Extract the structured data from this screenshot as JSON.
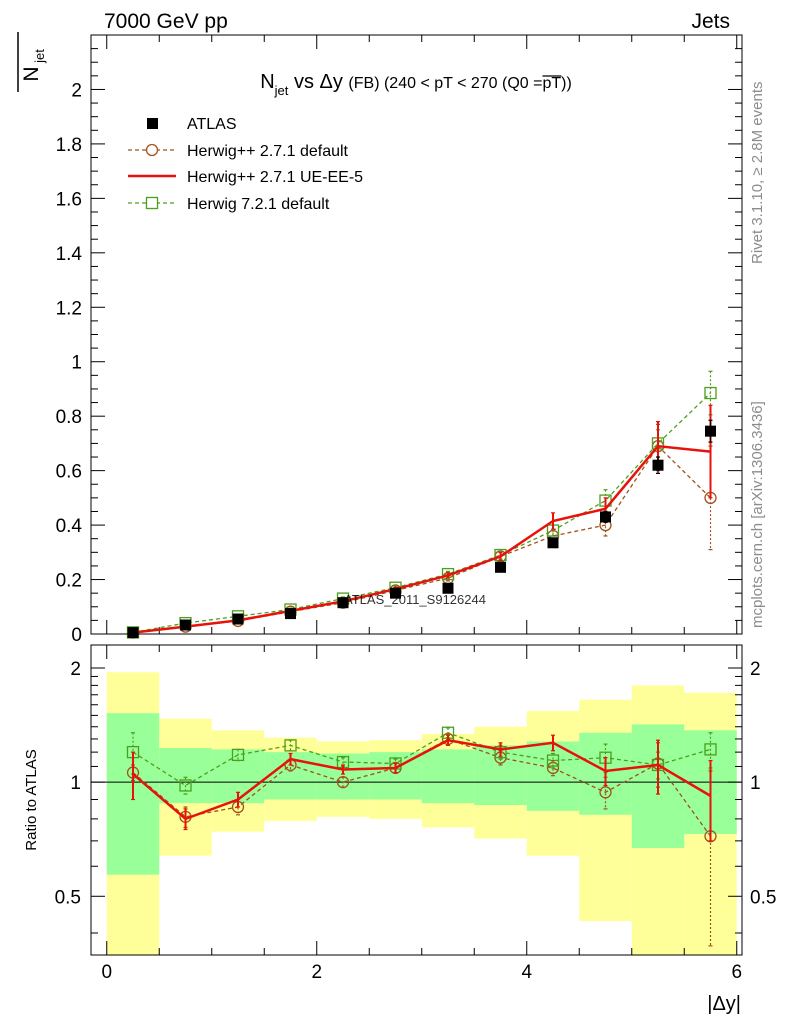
{
  "header": {
    "left": "7000 GeV pp",
    "right": "Jets",
    "side_top": "Rivet 3.1.10, ≥ 2.8M events",
    "side_bottom": "mcplots.cern.ch [arXiv:1306.3436]",
    "watermark": "ATLAS_2011_S9126244"
  },
  "chart_data": [
    {
      "type": "line",
      "panel": "main",
      "title_parts": {
        "n": "N",
        "sub": "jet",
        "vs": " vs Δy ",
        "fb": "(FB)",
        "cut": " (240 < pT < 270 (Q0 =",
        "pt": "pT",
        "close": "))"
      },
      "ylabel": {
        "n": "N",
        "sub": "jet"
      },
      "xlim": [
        -0.15,
        6.05
      ],
      "ylim": [
        0,
        2.2
      ],
      "yticks": [
        0,
        0.2,
        0.4,
        0.6,
        0.8,
        1,
        1.2,
        1.4,
        1.6,
        1.8,
        2
      ],
      "ytick_labels": [
        "0",
        "0.2",
        "0.4",
        "0.6",
        "0.8",
        "1",
        "1.2",
        "1.4",
        "1.6",
        "1.8",
        "2"
      ],
      "x": [
        0.25,
        0.75,
        1.25,
        1.75,
        2.25,
        2.75,
        3.25,
        3.75,
        4.25,
        4.75,
        5.25,
        5.75
      ],
      "x_edges": [
        0,
        0.5,
        1,
        1.5,
        2,
        2.5,
        3,
        3.5,
        4,
        4.5,
        5,
        5.5,
        6
      ],
      "series": [
        {
          "name": "ATLAS",
          "style": "data",
          "color": "#000000",
          "values": [
            0.005,
            0.033,
            0.055,
            0.075,
            0.115,
            0.15,
            0.168,
            0.245,
            0.335,
            0.43,
            0.62,
            0.745
          ],
          "errors": [
            0.002,
            0.003,
            0.004,
            0.005,
            0.006,
            0.008,
            0.01,
            0.012,
            0.015,
            0.02,
            0.03,
            0.04
          ]
        },
        {
          "name": "Herwig++ 2.7.1 default",
          "style": "circle",
          "color": "#a0521a",
          "values": [
            0.005,
            0.027,
            0.048,
            0.082,
            0.115,
            0.16,
            0.205,
            0.285,
            0.36,
            0.4,
            0.69,
            0.5
          ],
          "errors": [
            0.001,
            0.003,
            0.004,
            0.005,
            0.006,
            0.008,
            0.01,
            0.015,
            0.02,
            0.04,
            0.08,
            0.19
          ]
        },
        {
          "name": "Herwig++ 2.7.1 UE-EE-5",
          "style": "line",
          "color": "#e8120c",
          "values": [
            0.005,
            0.027,
            0.05,
            0.085,
            0.12,
            0.165,
            0.215,
            0.285,
            0.415,
            0.46,
            0.69,
            0.67
          ],
          "errors": [
            0.001,
            0.003,
            0.004,
            0.005,
            0.006,
            0.008,
            0.01,
            0.015,
            0.03,
            0.04,
            0.09,
            0.17
          ]
        },
        {
          "name": "Herwig 7.2.1 default",
          "style": "square",
          "color": "#4c9f1c",
          "values": [
            0.006,
            0.04,
            0.065,
            0.09,
            0.13,
            0.17,
            0.22,
            0.29,
            0.38,
            0.49,
            0.7,
            0.885
          ],
          "errors": [
            0.001,
            0.003,
            0.004,
            0.005,
            0.006,
            0.008,
            0.01,
            0.015,
            0.02,
            0.04,
            0.05,
            0.08
          ]
        }
      ]
    },
    {
      "type": "line",
      "panel": "ratio",
      "ylabel": "Ratio to ATLAS",
      "xlabel": "|Δy|",
      "xlim": [
        -0.15,
        6.05
      ],
      "ylim": [
        0.35,
        2.3
      ],
      "log_y": true,
      "yticks": [
        0.5,
        1,
        2
      ],
      "ytick_labels": [
        "0.5",
        "1",
        "2"
      ],
      "xticks": [
        0,
        2,
        4,
        6
      ],
      "xtick_labels": [
        "0",
        "2",
        "4",
        "6"
      ],
      "x": [
        0.25,
        0.75,
        1.25,
        1.75,
        2.25,
        2.75,
        3.25,
        3.75,
        4.25,
        4.75,
        5.25,
        5.75
      ],
      "x_edges": [
        0,
        0.5,
        1,
        1.5,
        2,
        2.5,
        3,
        3.5,
        4,
        4.5,
        5,
        5.5,
        6
      ],
      "band_inner": {
        "color": "#99ff99",
        "low": [
          0.57,
          0.88,
          0.88,
          0.9,
          0.9,
          0.9,
          0.88,
          0.87,
          0.84,
          0.82,
          0.67,
          0.73
        ],
        "high": [
          1.52,
          1.23,
          1.22,
          1.2,
          1.19,
          1.2,
          1.22,
          1.25,
          1.28,
          1.35,
          1.42,
          1.37
        ]
      },
      "band_outer": {
        "color": "#ffff99",
        "low": [
          0.3,
          0.64,
          0.74,
          0.79,
          0.81,
          0.8,
          0.76,
          0.71,
          0.64,
          0.43,
          0.3,
          0.3
        ],
        "high": [
          1.95,
          1.47,
          1.37,
          1.31,
          1.28,
          1.29,
          1.34,
          1.4,
          1.54,
          1.65,
          1.8,
          1.72
        ]
      },
      "series": [
        {
          "name": "Herwig++ 2.7.1 default",
          "style": "circle",
          "color": "#a0521a",
          "values": [
            1.06,
            0.81,
            0.86,
            1.11,
            1.0,
            1.09,
            1.3,
            1.16,
            1.09,
            0.94,
            1.12,
            0.72
          ],
          "errors": [
            0.05,
            0.05,
            0.04,
            0.04,
            0.03,
            0.03,
            0.04,
            0.05,
            0.05,
            0.09,
            0.15,
            0.35
          ]
        },
        {
          "name": "Herwig++ 2.7.1 UE-EE-5",
          "style": "line",
          "color": "#e8120c",
          "values": [
            1.05,
            0.8,
            0.9,
            1.15,
            1.08,
            1.09,
            1.29,
            1.22,
            1.27,
            1.07,
            1.11,
            0.92
          ],
          "errors": [
            0.15,
            0.05,
            0.04,
            0.04,
            0.03,
            0.03,
            0.04,
            0.05,
            0.06,
            0.09,
            0.18,
            0.22
          ]
        },
        {
          "name": "Herwig 7.2.1 default",
          "style": "square",
          "color": "#4c9f1c",
          "values": [
            1.2,
            0.98,
            1.18,
            1.25,
            1.13,
            1.12,
            1.35,
            1.2,
            1.14,
            1.16,
            1.11,
            1.22
          ],
          "errors": [
            0.15,
            0.05,
            0.04,
            0.04,
            0.03,
            0.03,
            0.04,
            0.05,
            0.05,
            0.1,
            0.09,
            0.13
          ]
        }
      ]
    }
  ]
}
